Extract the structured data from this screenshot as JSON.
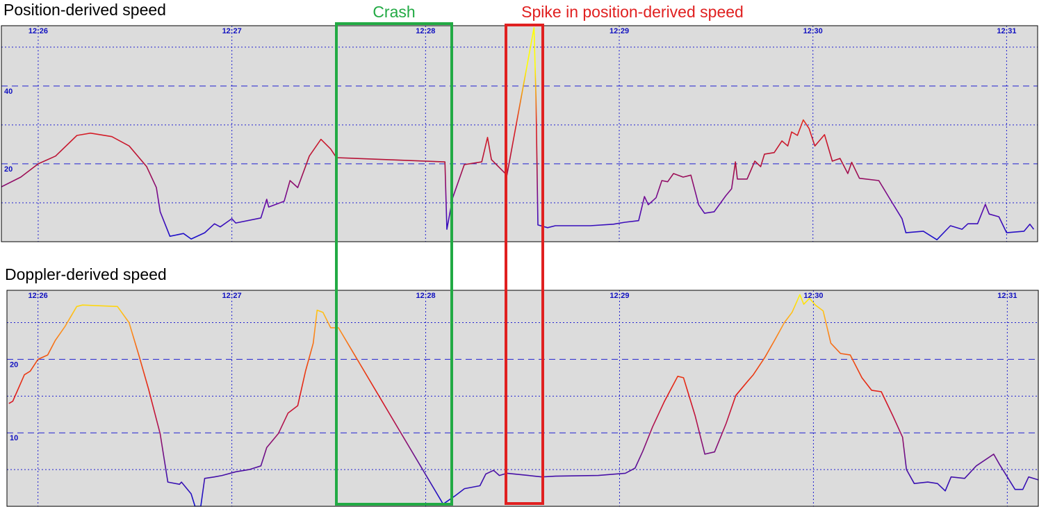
{
  "chart_data": [
    {
      "type": "line",
      "title": "Position-derived speed",
      "x": [
        25.81,
        25.91,
        26.0,
        26.09,
        26.2,
        26.27,
        26.38,
        26.47,
        26.56,
        26.61,
        26.63,
        26.68,
        26.75,
        26.79,
        26.86,
        26.91,
        26.94,
        27.0,
        27.02,
        27.15,
        27.18,
        27.19,
        27.27,
        27.3,
        27.34,
        27.4,
        27.46,
        27.51,
        27.54,
        28.1,
        28.11,
        28.14,
        28.2,
        28.29,
        28.32,
        28.34,
        28.42,
        28.56,
        28.57,
        28.58,
        28.63,
        28.67,
        28.85,
        28.97,
        29.03,
        29.1,
        29.13,
        29.15,
        29.19,
        29.22,
        29.25,
        29.28,
        29.33,
        29.37,
        29.41,
        29.44,
        29.49,
        29.55,
        29.58,
        29.6,
        29.61,
        29.66,
        29.7,
        29.73,
        29.75,
        29.8,
        29.84,
        29.87,
        29.89,
        29.92,
        29.95,
        29.98,
        30.01,
        30.06,
        30.1,
        30.14,
        30.18,
        30.2,
        30.24,
        30.34,
        30.39,
        30.46,
        30.48,
        30.57,
        30.64,
        30.71,
        30.77,
        30.8,
        30.85,
        30.89,
        30.91,
        30.96,
        31.0,
        31.09,
        31.12,
        31.14
      ],
      "values": [
        14.1,
        16.6,
        20.0,
        22.0,
        27.3,
        27.9,
        27.0,
        24.6,
        19.3,
        13.9,
        7.7,
        1.4,
        2.1,
        0.7,
        2.3,
        4.6,
        3.8,
        5.9,
        4.8,
        6.1,
        10.9,
        8.9,
        10.4,
        15.7,
        13.9,
        22.0,
        26.3,
        23.8,
        21.6,
        20.5,
        3.2,
        11.3,
        19.8,
        20.5,
        26.8,
        21.1,
        17.1,
        55.0,
        37.1,
        4.3,
        3.6,
        4.1,
        4.1,
        4.5,
        5.0,
        5.4,
        11.6,
        9.5,
        11.3,
        15.7,
        15.4,
        17.5,
        16.6,
        17.1,
        9.5,
        7.3,
        7.7,
        11.8,
        13.6,
        20.5,
        16.1,
        16.1,
        20.7,
        19.3,
        22.5,
        22.9,
        25.9,
        24.6,
        28.2,
        27.3,
        31.3,
        29.1,
        24.6,
        27.5,
        20.7,
        21.4,
        17.5,
        20.4,
        16.3,
        15.7,
        11.6,
        5.9,
        2.3,
        2.7,
        0.5,
        4.1,
        3.2,
        4.6,
        4.6,
        9.6,
        7.1,
        6.4,
        2.3,
        2.7,
        4.5,
        3.2
      ],
      "xlim": [
        25.81,
        31.16
      ],
      "xticks": [
        {
          "value": 26,
          "label": "12:26"
        },
        {
          "value": 27,
          "label": "12:27"
        },
        {
          "value": 28,
          "label": "12:28"
        },
        {
          "value": 29,
          "label": "12:29"
        },
        {
          "value": 30,
          "label": "12:30"
        },
        {
          "value": 31,
          "label": "12:31"
        }
      ],
      "ylim": [
        0,
        55.5
      ],
      "yticks": [
        20,
        40
      ],
      "y_minor_ticks": [
        10,
        30,
        50
      ],
      "grid": true,
      "color_scale": [
        {
          "value": 0,
          "color": "#1010d0"
        },
        {
          "value": 10,
          "color": "#6a0aa0"
        },
        {
          "value": 20,
          "color": "#b0103a"
        },
        {
          "value": 30,
          "color": "#e02020"
        },
        {
          "value": 45,
          "color": "#ffff00"
        }
      ]
    },
    {
      "type": "line",
      "title": "Doppler-derived speed",
      "x": [
        25.85,
        25.87,
        25.93,
        25.96,
        26.0,
        26.05,
        26.09,
        26.14,
        26.2,
        26.23,
        26.41,
        26.47,
        26.52,
        26.57,
        26.63,
        26.67,
        26.73,
        26.74,
        26.79,
        26.81,
        26.84,
        26.86,
        26.91,
        26.95,
        27.02,
        27.09,
        27.15,
        27.18,
        27.24,
        27.29,
        27.34,
        27.38,
        27.42,
        27.44,
        27.47,
        27.51,
        27.55,
        28.09,
        28.15,
        28.2,
        28.28,
        28.31,
        28.35,
        28.38,
        28.42,
        28.53,
        28.6,
        28.67,
        28.89,
        29.03,
        29.08,
        29.12,
        29.17,
        29.23,
        29.3,
        29.33,
        29.39,
        29.44,
        29.49,
        29.55,
        29.6,
        29.66,
        29.69,
        29.75,
        29.8,
        29.85,
        29.89,
        29.93,
        29.95,
        29.98,
        30.01,
        30.05,
        30.09,
        30.14,
        30.19,
        30.25,
        30.3,
        30.35,
        30.41,
        30.46,
        30.48,
        30.52,
        30.59,
        30.64,
        30.68,
        30.71,
        30.78,
        30.84,
        30.93,
        30.96,
        31.0,
        31.04,
        31.08,
        31.11,
        31.16
      ],
      "values": [
        14.0,
        14.3,
        17.9,
        18.4,
        20.0,
        20.6,
        22.6,
        24.5,
        27.2,
        27.4,
        27.2,
        25.0,
        20.6,
        16.0,
        9.9,
        3.3,
        3.0,
        3.3,
        1.7,
        0.0,
        0.0,
        3.8,
        4.0,
        4.2,
        4.7,
        5.0,
        5.5,
        8.0,
        9.9,
        12.7,
        13.7,
        18.4,
        22.2,
        26.7,
        26.4,
        24.3,
        24.3,
        0.3,
        1.4,
        2.4,
        2.8,
        4.4,
        4.9,
        4.2,
        4.5,
        4.2,
        4.0,
        4.1,
        4.2,
        4.5,
        5.2,
        7.5,
        10.8,
        14.2,
        17.7,
        17.5,
        12.3,
        7.1,
        7.4,
        11.3,
        15.1,
        17.0,
        17.9,
        20.3,
        22.6,
        25.0,
        26.4,
        28.8,
        27.5,
        28.3,
        27.4,
        26.6,
        22.2,
        20.8,
        20.6,
        17.5,
        15.8,
        15.6,
        12.3,
        9.4,
        5.0,
        3.1,
        3.3,
        3.1,
        2.1,
        4.0,
        3.8,
        5.5,
        7.1,
        5.7,
        4.0,
        2.3,
        2.3,
        4.0,
        3.6
      ],
      "xlim": [
        25.84,
        31.16
      ],
      "xticks": [
        {
          "value": 26,
          "label": "12:26"
        },
        {
          "value": 27,
          "label": "12:27"
        },
        {
          "value": 28,
          "label": "12:28"
        },
        {
          "value": 29,
          "label": "12:29"
        },
        {
          "value": 30,
          "label": "12:30"
        },
        {
          "value": 31,
          "label": "12:31"
        }
      ],
      "ylim": [
        0,
        29.4
      ],
      "yticks": [
        10,
        20
      ],
      "y_minor_ticks": [
        5,
        15,
        25
      ],
      "grid": true,
      "color_scale": [
        {
          "value": 0,
          "color": "#1010d0"
        },
        {
          "value": 5,
          "color": "#5010a0"
        },
        {
          "value": 10,
          "color": "#a01060"
        },
        {
          "value": 15,
          "color": "#e01818"
        },
        {
          "value": 20,
          "color": "#f05010"
        },
        {
          "value": 25,
          "color": "#ffa020"
        },
        {
          "value": 29,
          "color": "#ffff00"
        }
      ]
    }
  ],
  "annotations": [
    {
      "label": "Crash",
      "color": "#22aa44"
    },
    {
      "label": "Spike in position-derived speed",
      "color": "#e02020"
    }
  ]
}
